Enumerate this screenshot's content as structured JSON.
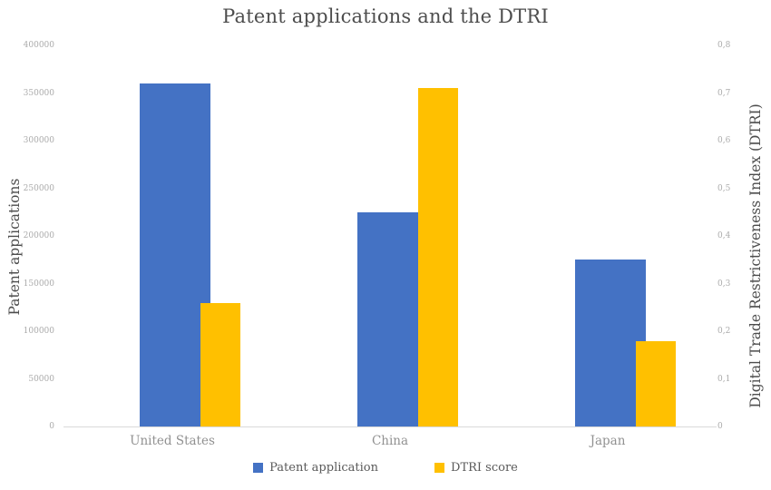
{
  "chart_data": {
    "type": "bar",
    "title": "Patent applications and the DTRI",
    "categories": [
      "United States",
      "China",
      "Japan"
    ],
    "series": [
      {
        "name": "Patent application",
        "axis": "left",
        "color": "#4472C4",
        "values": [
          360000,
          225000,
          175000
        ]
      },
      {
        "name": "DTRI score",
        "axis": "right",
        "color": "#FFC000",
        "values": [
          0.26,
          0.71,
          0.18
        ]
      }
    ],
    "left_axis": {
      "label": "Patent applications",
      "min": 0,
      "max": 400000,
      "step": 50000,
      "tick_labels": [
        "0",
        "50000",
        "100000",
        "150000",
        "200000",
        "250000",
        "300000",
        "350000",
        "400000"
      ]
    },
    "right_axis": {
      "label": "Digital Trade Restrictiveness Index (DTRI)",
      "min": 0,
      "max": 0.8,
      "step": 0.1,
      "tick_labels": [
        "0",
        "0,1",
        "0,2",
        "0,3",
        "0,4",
        "0,5",
        "0,6",
        "0,7",
        "0,8"
      ]
    },
    "legend": {
      "position": "bottom",
      "entries": [
        "Patent application",
        "DTRI score"
      ]
    },
    "grid": false,
    "colors": {
      "axis_line": "#d9d9d9",
      "tick_text": "#ababab",
      "category_text": "#919191",
      "title_text": "#4d4d4d",
      "legend_text": "#595959"
    }
  }
}
